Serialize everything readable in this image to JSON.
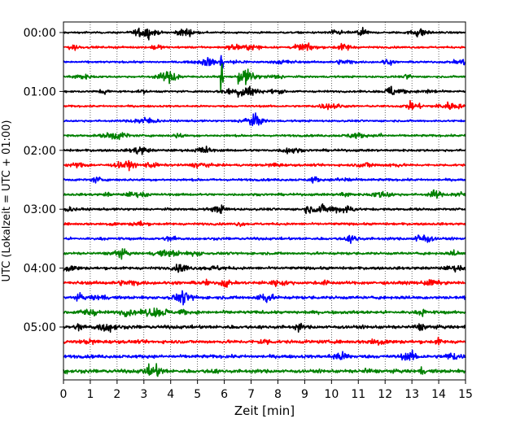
{
  "chart_data": {
    "type": "line",
    "title": "",
    "xlabel": "Zeit  [min]",
    "ylabel": "UTC (Lokalzeit = UTC + 01:00)",
    "xlim": [
      0,
      15
    ],
    "x_ticks": [
      0,
      1,
      2,
      3,
      4,
      5,
      6,
      7,
      8,
      9,
      10,
      11,
      12,
      13,
      14,
      15
    ],
    "y_tick_labels": [
      "00:00",
      "01:00",
      "02:00",
      "03:00",
      "04:00",
      "05:00"
    ],
    "grid": "vertical dotted",
    "trace_interval_min": 15,
    "trace_count": 24,
    "colors": [
      "#000000",
      "#ff0000",
      "#0000ff",
      "#008000"
    ],
    "series": [
      {
        "start": "00:00",
        "amplitude": 1.0
      },
      {
        "start": "00:15",
        "amplitude": 1.0
      },
      {
        "start": "00:30",
        "amplitude": 1.0
      },
      {
        "start": "00:45",
        "amplitude": 1.0
      },
      {
        "start": "01:00",
        "amplitude": 1.0
      },
      {
        "start": "01:15",
        "amplitude": 1.0
      },
      {
        "start": "01:30",
        "amplitude": 1.0
      },
      {
        "start": "01:45",
        "amplitude": 1.1
      },
      {
        "start": "02:00",
        "amplitude": 1.2
      },
      {
        "start": "02:15",
        "amplitude": 1.2
      },
      {
        "start": "02:30",
        "amplitude": 1.2
      },
      {
        "start": "02:45",
        "amplitude": 1.2
      },
      {
        "start": "03:00",
        "amplitude": 1.2
      },
      {
        "start": "03:15",
        "amplitude": 1.2
      },
      {
        "start": "03:30",
        "amplitude": 1.3
      },
      {
        "start": "03:45",
        "amplitude": 1.3
      },
      {
        "start": "04:00",
        "amplitude": 1.4
      },
      {
        "start": "04:15",
        "amplitude": 1.6
      },
      {
        "start": "04:30",
        "amplitude": 1.6
      },
      {
        "start": "04:45",
        "amplitude": 1.6
      },
      {
        "start": "05:00",
        "amplitude": 1.7
      },
      {
        "start": "05:15",
        "amplitude": 1.7
      },
      {
        "start": "05:30",
        "amplitude": 1.7
      },
      {
        "start": "05:45",
        "amplitude": 1.8
      }
    ],
    "events": [
      {
        "trace": 2,
        "x_min": 5.85,
        "x_max": 5.95,
        "amplitude": 12
      },
      {
        "trace": 3,
        "x_min": 5.85,
        "x_max": 5.95,
        "amplitude": 13
      },
      {
        "trace": 3,
        "x_min": 6.5,
        "x_max": 8.3,
        "amplitude": 11
      },
      {
        "trace": 4,
        "x_min": 6.5,
        "x_max": 8.3,
        "amplitude": 10
      }
    ]
  }
}
